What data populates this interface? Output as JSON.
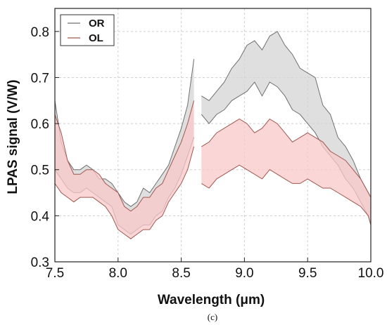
{
  "chart_data": {
    "type": "area",
    "caption": "(c)",
    "xlabel": "Wavelength (μm)",
    "ylabel": "LPAS signal (V/W)",
    "xlim": [
      7.5,
      10.0
    ],
    "ylim": [
      0.3,
      0.85
    ],
    "xticks": [
      "7.5",
      "8.0",
      "8.5",
      "9.0",
      "9.5",
      "10.0"
    ],
    "yticks": [
      "0.3",
      "0.4",
      "0.5",
      "0.6",
      "0.7",
      "0.8"
    ],
    "grid": true,
    "legend_position": "top-left",
    "series": [
      {
        "name": "OR",
        "color": "#707070",
        "fill": "#d4d4d4",
        "segments": [
          {
            "x": [
              7.5,
              7.55,
              7.6,
              7.65,
              7.7,
              7.75,
              7.8,
              7.85,
              7.9,
              7.95,
              8.0,
              8.05,
              8.1,
              8.15,
              8.2,
              8.25,
              8.3,
              8.35,
              8.4,
              8.45,
              8.5,
              8.55,
              8.6
            ],
            "upper": [
              0.65,
              0.56,
              0.52,
              0.5,
              0.5,
              0.51,
              0.5,
              0.48,
              0.48,
              0.47,
              0.45,
              0.43,
              0.42,
              0.43,
              0.46,
              0.45,
              0.47,
              0.49,
              0.51,
              0.55,
              0.59,
              0.64,
              0.74
            ],
            "lower": [
              0.5,
              0.48,
              0.46,
              0.45,
              0.45,
              0.46,
              0.45,
              0.44,
              0.43,
              0.42,
              0.38,
              0.37,
              0.36,
              0.37,
              0.38,
              0.38,
              0.4,
              0.41,
              0.44,
              0.46,
              0.49,
              0.53,
              0.57
            ]
          },
          {
            "x": [
              8.66,
              8.72,
              8.78,
              8.84,
              8.9,
              8.96,
              9.02,
              9.08,
              9.14,
              9.2,
              9.26,
              9.32,
              9.38,
              9.44,
              9.5,
              9.56,
              9.62,
              9.68,
              9.74,
              9.8,
              9.86,
              9.92,
              9.98,
              10.0
            ],
            "upper": [
              0.66,
              0.65,
              0.67,
              0.69,
              0.72,
              0.74,
              0.77,
              0.78,
              0.76,
              0.79,
              0.8,
              0.77,
              0.75,
              0.72,
              0.71,
              0.7,
              0.64,
              0.62,
              0.57,
              0.55,
              0.52,
              0.48,
              0.45,
              0.44
            ],
            "lower": [
              0.62,
              0.6,
              0.62,
              0.63,
              0.65,
              0.66,
              0.67,
              0.69,
              0.66,
              0.69,
              0.68,
              0.66,
              0.63,
              0.62,
              0.6,
              0.58,
              0.55,
              0.53,
              0.51,
              0.48,
              0.46,
              0.43,
              0.4,
              0.38
            ]
          }
        ]
      },
      {
        "name": "OL",
        "color": "#a0574f",
        "fill": "#f8c8c8",
        "segments": [
          {
            "x": [
              7.5,
              7.55,
              7.6,
              7.65,
              7.7,
              7.75,
              7.8,
              7.85,
              7.9,
              7.95,
              8.0,
              8.05,
              8.1,
              8.15,
              8.2,
              8.25,
              8.3,
              8.35,
              8.4,
              8.45,
              8.5,
              8.55,
              8.6
            ],
            "upper": [
              0.62,
              0.58,
              0.52,
              0.49,
              0.49,
              0.5,
              0.5,
              0.49,
              0.47,
              0.46,
              0.45,
              0.42,
              0.41,
              0.42,
              0.44,
              0.44,
              0.46,
              0.47,
              0.5,
              0.53,
              0.56,
              0.6,
              0.65
            ],
            "lower": [
              0.47,
              0.45,
              0.44,
              0.43,
              0.44,
              0.44,
              0.44,
              0.43,
              0.42,
              0.4,
              0.37,
              0.36,
              0.35,
              0.36,
              0.37,
              0.37,
              0.39,
              0.4,
              0.43,
              0.45,
              0.47,
              0.5,
              0.55
            ]
          },
          {
            "x": [
              8.66,
              8.72,
              8.78,
              8.84,
              8.9,
              8.96,
              9.02,
              9.08,
              9.14,
              9.2,
              9.26,
              9.32,
              9.38,
              9.44,
              9.5,
              9.56,
              9.62,
              9.68,
              9.74,
              9.8,
              9.86,
              9.92,
              9.98,
              10.0
            ],
            "upper": [
              0.55,
              0.56,
              0.58,
              0.59,
              0.6,
              0.61,
              0.6,
              0.58,
              0.59,
              0.61,
              0.6,
              0.58,
              0.56,
              0.57,
              0.58,
              0.57,
              0.56,
              0.54,
              0.53,
              0.52,
              0.5,
              0.48,
              0.45,
              0.44
            ],
            "lower": [
              0.47,
              0.46,
              0.48,
              0.49,
              0.5,
              0.51,
              0.5,
              0.49,
              0.48,
              0.5,
              0.49,
              0.48,
              0.47,
              0.47,
              0.48,
              0.47,
              0.46,
              0.46,
              0.45,
              0.44,
              0.43,
              0.42,
              0.4,
              0.38
            ]
          }
        ]
      }
    ]
  }
}
